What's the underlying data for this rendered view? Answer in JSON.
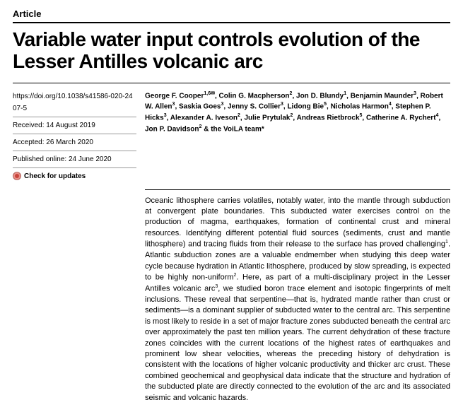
{
  "article_type": "Article",
  "title": "Variable water input controls evolution of the Lesser Antilles volcanic arc",
  "doi": "https://doi.org/10.1038/s41586-020-2407-5",
  "received_label": "Received:",
  "received_date": "14 August 2019",
  "accepted_label": "Accepted:",
  "accepted_date": "26 March 2020",
  "published_label": "Published online:",
  "published_date": "24 June 2020",
  "check_updates_label": "Check for updates",
  "authors_html": "George F. Cooper<sup>1,6✉</sup>, Colin G. Macpherson<sup>2</sup>, Jon D. Blundy<sup>1</sup>, Benjamin Maunder<sup>3</sup>, Robert W. Allen<sup>3</sup>, Saskia Goes<sup>3</sup>, Jenny S. Collier<sup>3</sup>, Lidong Bie<sup>5</sup>, Nicholas Harmon<sup>4</sup>, Stephen P. Hicks<sup>3</sup>, Alexander A. Iveson<sup>2</sup>, Julie Prytulak<sup>2</sup>, Andreas Rietbrock<sup>5</sup>, Catherine A. Rychert<sup>4</sup>, Jon P. Davidson<sup>2</sup> & the VoiLA team*",
  "abstract_html": "Oceanic lithosphere carries volatiles, notably water, into the mantle through subduction at convergent plate boundaries. This subducted water exercises control on the production of magma, earthquakes, formation of continental crust and mineral resources. Identifying different potential fluid sources (sediments, crust and mantle lithosphere) and tracing fluids from their release to the surface has proved challenging<sup>1</sup>. Atlantic subduction zones are a valuable endmember when studying this deep water cycle because hydration in Atlantic lithosphere, produced by slow spreading, is expected to be highly non-uniform<sup>2</sup>. Here, as part of a multi-disciplinary project in the Lesser Antilles volcanic arc<sup>3</sup>, we studied boron trace element and isotopic fingerprints of melt inclusions. These reveal that serpentine—that is, hydrated mantle rather than crust or sediments—is a dominant supplier of subducted water to the central arc. This serpentine is most likely to reside in a set of major fracture zones subducted beneath the central arc over approximately the past ten million years. The current dehydration of these fracture zones coincides with the current locations of the highest rates of earthquakes and prominent low shear velocities, whereas the preceding history of dehydration is consistent with the locations of higher volcanic productivity and thicker arc crust. These combined geochemical and geophysical data indicate that the structure and hydration of the subducted plate are directly connected to the evolution of the arc and its associated seismic and volcanic hazards.",
  "colors": {
    "text": "#000000",
    "background": "#ffffff",
    "divider": "#999999",
    "icon_red": "#c8453c",
    "icon_pink": "#e89088",
    "icon_border": "#8a2f28"
  },
  "typography": {
    "title_fontsize": 28,
    "meta_fontsize": 10,
    "abstract_fontsize": 11,
    "article_type_fontsize": 13
  }
}
